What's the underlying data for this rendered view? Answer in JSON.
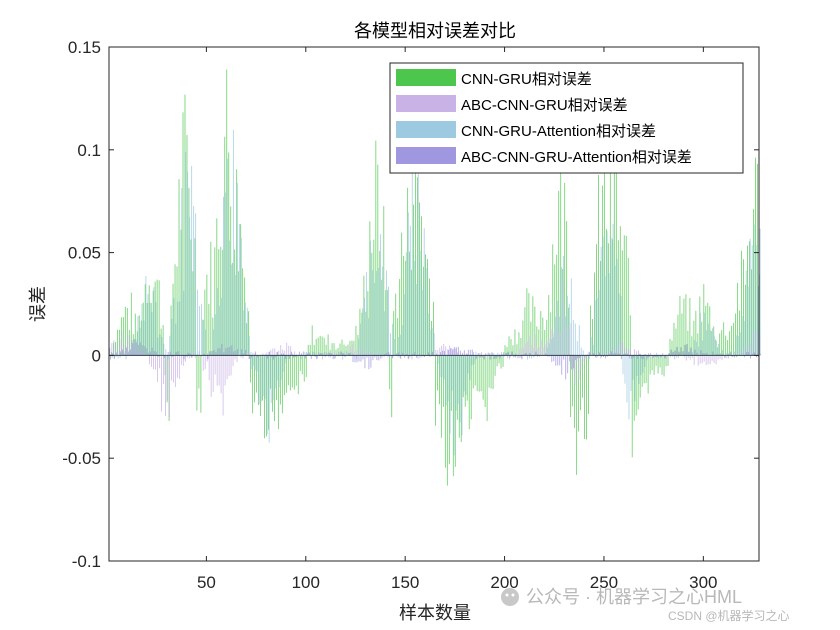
{
  "chart_data": {
    "type": "bar",
    "title": "各模型相对误差对比",
    "xlabel": "样本数量",
    "ylabel": "误差",
    "xlim": [
      1,
      328
    ],
    "ylim": [
      -0.1,
      0.15
    ],
    "xticks": [
      50,
      100,
      150,
      200,
      250,
      300
    ],
    "yticks": [
      -0.1,
      -0.05,
      0,
      0.05,
      0.1,
      0.15
    ],
    "ytick_labels": [
      "-0.1",
      "-0.05",
      "0",
      "0.05",
      "0.1",
      "0.15"
    ],
    "grid": false,
    "legend_position": "top-right",
    "series": [
      {
        "name": "CNN-GRU相对误差",
        "color": "#4dc64d",
        "peaks": [
          {
            "x": 10,
            "y": 0.03
          },
          {
            "x": 22,
            "y": 0.058
          },
          {
            "x": 32,
            "y": -0.03
          },
          {
            "x": 39,
            "y": 0.12
          },
          {
            "x": 42,
            "y": -0.065
          },
          {
            "x": 48,
            "y": 0.03
          },
          {
            "x": 52,
            "y": 0.055
          },
          {
            "x": 60,
            "y": 0.143
          },
          {
            "x": 64,
            "y": 0.1
          },
          {
            "x": 70,
            "y": 0.02
          },
          {
            "x": 78,
            "y": -0.06
          },
          {
            "x": 86,
            "y": -0.035
          },
          {
            "x": 95,
            "y": -0.02
          },
          {
            "x": 105,
            "y": 0.015
          },
          {
            "x": 112,
            "y": 0.01
          },
          {
            "x": 120,
            "y": 0.01
          },
          {
            "x": 128,
            "y": 0.02
          },
          {
            "x": 135,
            "y": 0.1
          },
          {
            "x": 140,
            "y": -0.04
          },
          {
            "x": 150,
            "y": 0.07
          },
          {
            "x": 155,
            "y": 0.12
          },
          {
            "x": 160,
            "y": 0.06
          },
          {
            "x": 165,
            "y": -0.04
          },
          {
            "x": 173,
            "y": -0.072
          },
          {
            "x": 180,
            "y": -0.055
          },
          {
            "x": 188,
            "y": -0.04
          },
          {
            "x": 195,
            "y": -0.01
          },
          {
            "x": 205,
            "y": 0.015
          },
          {
            "x": 212,
            "y": 0.03
          },
          {
            "x": 220,
            "y": 0.03
          },
          {
            "x": 228,
            "y": 0.1
          },
          {
            "x": 236,
            "y": -0.07
          },
          {
            "x": 242,
            "y": -0.02
          },
          {
            "x": 250,
            "y": 0.1
          },
          {
            "x": 255,
            "y": 0.1
          },
          {
            "x": 260,
            "y": 0.06
          },
          {
            "x": 265,
            "y": -0.045
          },
          {
            "x": 272,
            "y": -0.02
          },
          {
            "x": 280,
            "y": -0.01
          },
          {
            "x": 290,
            "y": 0.03
          },
          {
            "x": 300,
            "y": 0.035
          },
          {
            "x": 305,
            "y": -0.01
          },
          {
            "x": 312,
            "y": 0.02
          },
          {
            "x": 320,
            "y": 0.05
          },
          {
            "x": 326,
            "y": 0.1
          }
        ]
      },
      {
        "name": "ABC-CNN-GRU相对误差",
        "color": "#c9b3e6",
        "peaks": [
          {
            "x": 8,
            "y": 0.012
          },
          {
            "x": 30,
            "y": -0.03
          },
          {
            "x": 56,
            "y": -0.028
          },
          {
            "x": 90,
            "y": 0.006
          },
          {
            "x": 125,
            "y": 0.005
          },
          {
            "x": 170,
            "y": 0.005
          },
          {
            "x": 215,
            "y": 0.01
          },
          {
            "x": 228,
            "y": 0.035
          },
          {
            "x": 232,
            "y": -0.018
          },
          {
            "x": 258,
            "y": 0.008
          },
          {
            "x": 300,
            "y": -0.008
          },
          {
            "x": 326,
            "y": 0.012
          }
        ]
      },
      {
        "name": "CNN-GRU-Attention相对误差",
        "color": "#9ecae1",
        "peaks": [
          {
            "x": 20,
            "y": 0.04
          },
          {
            "x": 40,
            "y": 0.095
          },
          {
            "x": 62,
            "y": 0.115
          },
          {
            "x": 80,
            "y": -0.04
          },
          {
            "x": 135,
            "y": 0.08
          },
          {
            "x": 155,
            "y": 0.095
          },
          {
            "x": 175,
            "y": -0.05
          },
          {
            "x": 230,
            "y": 0.045
          },
          {
            "x": 252,
            "y": 0.08
          },
          {
            "x": 262,
            "y": -0.03
          },
          {
            "x": 300,
            "y": 0.02
          },
          {
            "x": 325,
            "y": 0.07
          }
        ]
      },
      {
        "name": "ABC-CNN-GRU-Attention相对误差",
        "color": "#9f97e0",
        "peaks": [
          {
            "x": 15,
            "y": 0.008
          },
          {
            "x": 60,
            "y": 0.006
          },
          {
            "x": 130,
            "y": -0.006
          },
          {
            "x": 175,
            "y": 0.005
          },
          {
            "x": 230,
            "y": -0.01
          },
          {
            "x": 290,
            "y": 0.005
          }
        ]
      }
    ]
  },
  "watermark": {
    "main": "公众号 · 机器学习之心HML",
    "small": "CSDN @机器学习之心"
  }
}
